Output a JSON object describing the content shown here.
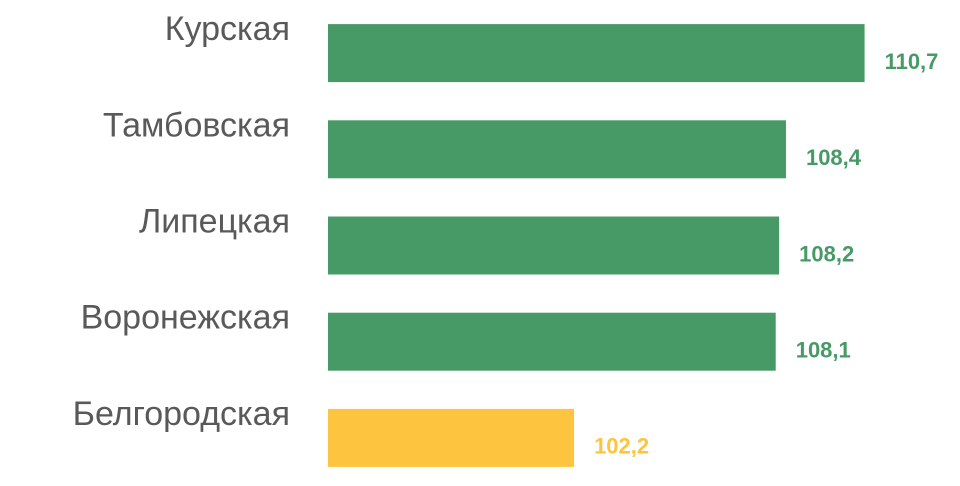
{
  "chart_data": {
    "type": "barh",
    "categories": [
      "Курская",
      "Тамбовская",
      "Липецкая",
      "Воронежская",
      "Белгородская"
    ],
    "values": [
      110.7,
      108.4,
      108.2,
      108.1,
      102.2
    ],
    "value_labels": [
      "110,7",
      "108,4",
      "108,2",
      "108,1",
      "102,2"
    ],
    "colors": [
      "#479a66",
      "#479a66",
      "#479a66",
      "#479a66",
      "#fdc43f"
    ],
    "xlim": [
      95,
      112
    ]
  }
}
